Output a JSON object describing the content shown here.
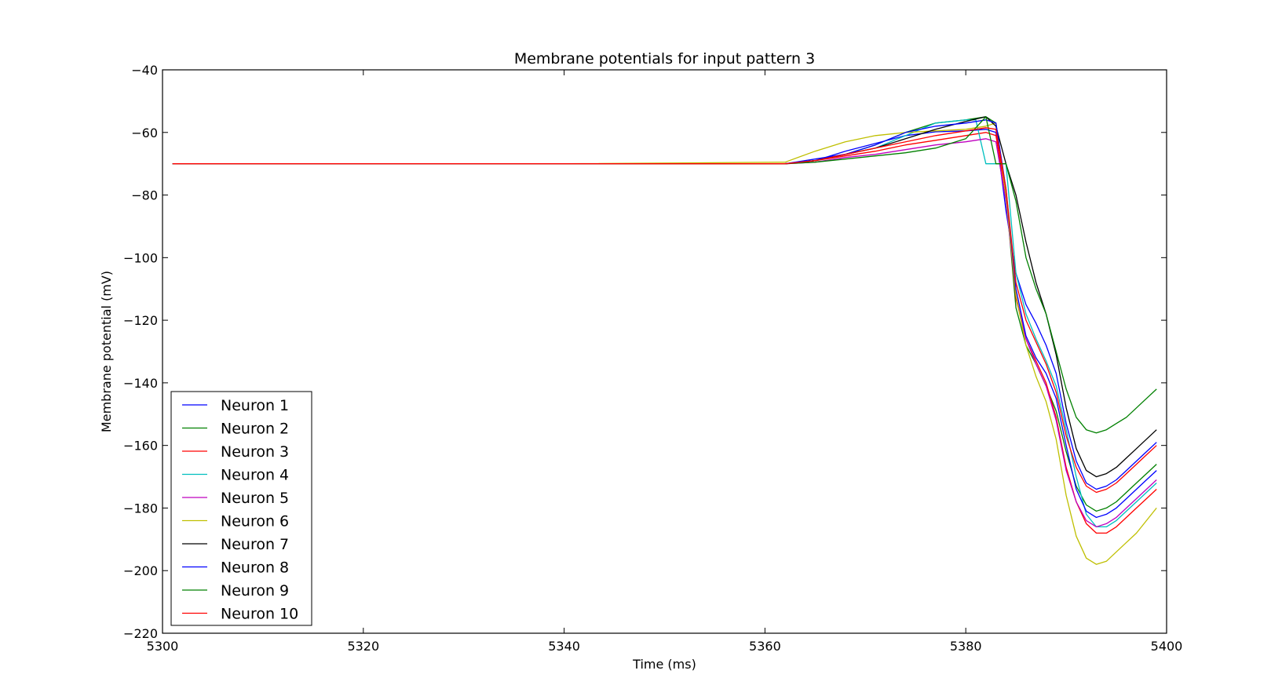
{
  "chart_data": {
    "type": "line",
    "title": "Membrane potentials for input pattern 3",
    "xlabel": "Time (ms)",
    "ylabel": "Membrane potential (mV)",
    "xlim": [
      5300,
      5400
    ],
    "ylim": [
      -220,
      -40
    ],
    "xticks": [
      5300,
      5320,
      5340,
      5360,
      5380,
      5400
    ],
    "xtick_labels": [
      "5300",
      "5320",
      "5340",
      "5360",
      "5380",
      "5400"
    ],
    "yticks": [
      -40,
      -60,
      -80,
      -100,
      -120,
      -140,
      -160,
      -180,
      -200,
      -220
    ],
    "ytick_labels": [
      "−40",
      "−60",
      "−80",
      "−100",
      "−120",
      "−140",
      "−160",
      "−180",
      "−200",
      "−220"
    ],
    "grid": false,
    "legend_position": "lower-left",
    "series": [
      {
        "name": "Neuron 1",
        "color": "#0000ff",
        "x": [
          5301,
          5320,
          5340,
          5362,
          5365,
          5368,
          5371,
          5374,
          5377,
          5380,
          5382,
          5383,
          5384,
          5385,
          5386,
          5387,
          5388,
          5389,
          5390,
          5391,
          5392,
          5393,
          5394,
          5395,
          5396,
          5397,
          5398,
          5399
        ],
        "y": [
          -70,
          -70,
          -70,
          -70,
          -69,
          -66,
          -63.5,
          -61,
          -59.8,
          -59.5,
          -59,
          -60,
          -85,
          -105,
          -115,
          -121,
          -128,
          -137,
          -153,
          -165,
          -172,
          -174,
          -173,
          -171,
          -168,
          -165,
          -162,
          -159
        ]
      },
      {
        "name": "Neuron 2",
        "color": "#008000",
        "x": [
          5301,
          5320,
          5340,
          5362,
          5365,
          5368,
          5371,
          5374,
          5377,
          5380,
          5382,
          5383,
          5384,
          5385,
          5386,
          5387,
          5388,
          5389,
          5390,
          5391,
          5392,
          5393,
          5394,
          5395,
          5396,
          5397,
          5398,
          5399
        ],
        "y": [
          -70,
          -70,
          -70,
          -70,
          -69,
          -67,
          -64,
          -60,
          -57,
          -56,
          -55,
          -57,
          -80,
          -116,
          -128,
          -134,
          -141,
          -149,
          -162,
          -173,
          -179,
          -181,
          -180,
          -178,
          -175,
          -172,
          -169,
          -166
        ]
      },
      {
        "name": "Neuron 3",
        "color": "#ff0000",
        "x": [
          5301,
          5320,
          5340,
          5362,
          5365,
          5368,
          5371,
          5374,
          5377,
          5380,
          5382,
          5383,
          5384,
          5385,
          5386,
          5387,
          5388,
          5389,
          5390,
          5391,
          5392,
          5393,
          5394,
          5395,
          5396,
          5397,
          5398,
          5399
        ],
        "y": [
          -70,
          -70,
          -70,
          -70,
          -69,
          -67.5,
          -66,
          -64,
          -62.5,
          -61,
          -60,
          -61,
          -80,
          -113,
          -126,
          -133,
          -140,
          -151,
          -167,
          -178,
          -185,
          -188,
          -188,
          -186,
          -183,
          -180,
          -177,
          -174
        ]
      },
      {
        "name": "Neuron 4",
        "color": "#00bfbf",
        "x": [
          5301,
          5320,
          5340,
          5362,
          5365,
          5368,
          5371,
          5374,
          5377,
          5380,
          5381,
          5382,
          5383,
          5384,
          5385,
          5386,
          5387,
          5388,
          5389,
          5390,
          5391,
          5392,
          5393,
          5394,
          5395,
          5396,
          5397,
          5398,
          5399
        ],
        "y": [
          -70,
          -70,
          -70,
          -70,
          -69,
          -67,
          -65,
          -61,
          -57,
          -56,
          -56,
          -70,
          -70,
          -70,
          -105,
          -118,
          -126,
          -133,
          -141,
          -155,
          -170,
          -182,
          -186,
          -186,
          -184,
          -181,
          -178,
          -175,
          -172
        ]
      },
      {
        "name": "Neuron 5",
        "color": "#bf00bf",
        "x": [
          5301,
          5320,
          5340,
          5362,
          5365,
          5368,
          5371,
          5374,
          5377,
          5380,
          5382,
          5383,
          5384,
          5385,
          5386,
          5387,
          5388,
          5389,
          5390,
          5391,
          5392,
          5393,
          5394,
          5395,
          5396,
          5397,
          5398,
          5399
        ],
        "y": [
          -70,
          -70,
          -70,
          -70,
          -69.5,
          -68,
          -67,
          -65.5,
          -64,
          -63,
          -62,
          -63,
          -82,
          -112,
          -126,
          -134,
          -141,
          -152,
          -168,
          -178,
          -184,
          -186,
          -185,
          -183,
          -180,
          -177,
          -174,
          -171
        ]
      },
      {
        "name": "Neuron 6",
        "color": "#bfbf00",
        "x": [
          5301,
          5320,
          5340,
          5362,
          5365,
          5368,
          5371,
          5374,
          5377,
          5380,
          5382,
          5383,
          5384,
          5385,
          5386,
          5387,
          5388,
          5389,
          5390,
          5391,
          5392,
          5393,
          5394,
          5395,
          5396,
          5397,
          5398,
          5399
        ],
        "y": [
          -70,
          -70,
          -70,
          -69.5,
          -66,
          -63,
          -61,
          -60,
          -59.5,
          -59,
          -58,
          -57,
          -80,
          -112,
          -128,
          -138,
          -146,
          -158,
          -176,
          -189,
          -196,
          -198,
          -197,
          -194,
          -191,
          -188,
          -184,
          -180
        ]
      },
      {
        "name": "Neuron 7",
        "color": "#000000",
        "x": [
          5301,
          5320,
          5340,
          5362,
          5365,
          5368,
          5371,
          5374,
          5377,
          5380,
          5382,
          5383,
          5384,
          5385,
          5386,
          5387,
          5388,
          5389,
          5390,
          5391,
          5392,
          5393,
          5394,
          5395,
          5396,
          5397,
          5398,
          5399
        ],
        "y": [
          -70,
          -70,
          -70,
          -70,
          -69,
          -67,
          -65,
          -62,
          -59,
          -56.5,
          -55,
          -58,
          -70,
          -80,
          -95,
          -108,
          -118,
          -131,
          -148,
          -161,
          -168,
          -170,
          -169,
          -167,
          -164,
          -161,
          -158,
          -155
        ]
      },
      {
        "name": "Neuron 8",
        "color": "#0000ff",
        "x": [
          5301,
          5320,
          5340,
          5362,
          5365,
          5368,
          5371,
          5374,
          5377,
          5380,
          5382,
          5383,
          5384,
          5385,
          5386,
          5387,
          5388,
          5389,
          5390,
          5391,
          5392,
          5393,
          5394,
          5395,
          5396,
          5397,
          5398,
          5399
        ],
        "y": [
          -70,
          -70,
          -70,
          -70,
          -68.5,
          -67,
          -64,
          -60,
          -58,
          -57,
          -56,
          -57,
          -78,
          -110,
          -125,
          -132,
          -137,
          -145,
          -160,
          -174,
          -181,
          -183,
          -182,
          -180,
          -177,
          -174,
          -171,
          -168
        ]
      },
      {
        "name": "Neuron 9",
        "color": "#008000",
        "x": [
          5301,
          5320,
          5340,
          5362,
          5365,
          5368,
          5371,
          5374,
          5377,
          5380,
          5382,
          5383,
          5384,
          5385,
          5386,
          5387,
          5388,
          5389,
          5390,
          5391,
          5392,
          5393,
          5394,
          5395,
          5396,
          5397,
          5398,
          5399
        ],
        "y": [
          -70,
          -70,
          -70,
          -70,
          -69.5,
          -68.5,
          -67.5,
          -66.5,
          -65,
          -62,
          -55,
          -70,
          -70,
          -82,
          -100,
          -110,
          -118,
          -130,
          -142,
          -151,
          -155,
          -156,
          -155,
          -153,
          -151,
          -148,
          -145,
          -142
        ]
      },
      {
        "name": "Neuron 10",
        "color": "#ff0000",
        "x": [
          5301,
          5320,
          5340,
          5362,
          5365,
          5368,
          5371,
          5374,
          5377,
          5380,
          5382,
          5383,
          5384,
          5385,
          5386,
          5387,
          5388,
          5389,
          5390,
          5391,
          5392,
          5393,
          5394,
          5395,
          5396,
          5397,
          5398,
          5399
        ],
        "y": [
          -70,
          -70,
          -70,
          -70,
          -69,
          -67,
          -65,
          -63,
          -61,
          -59.5,
          -58.5,
          -59,
          -78,
          -108,
          -120,
          -127,
          -134,
          -143,
          -157,
          -167,
          -173,
          -175,
          -174,
          -172,
          -169,
          -166,
          -163,
          -160
        ]
      }
    ]
  }
}
